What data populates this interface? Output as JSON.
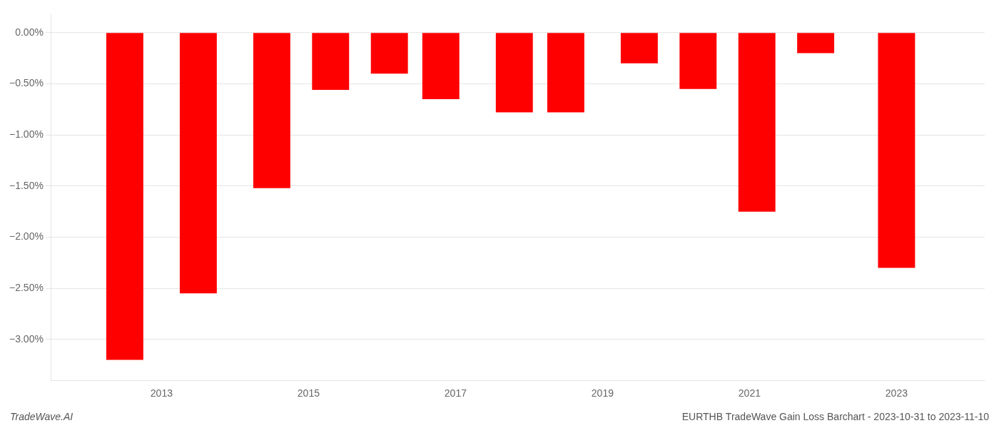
{
  "chart_data": {
    "type": "bar",
    "x": [
      2012.5,
      2013.5,
      2014.5,
      2015.3,
      2016.1,
      2016.8,
      2017.8,
      2018.5,
      2019.5,
      2020.3,
      2021.1,
      2021.9,
      2023.0
    ],
    "values": [
      -3.2,
      -2.55,
      -1.52,
      -0.56,
      -0.4,
      -0.65,
      -0.78,
      -0.78,
      -0.3,
      -0.55,
      -1.75,
      -0.2,
      -2.3
    ],
    "color": "#ff0000",
    "xlim": [
      2011.5,
      2024.2
    ],
    "xticks": [
      2013,
      2015,
      2017,
      2019,
      2021,
      2023
    ],
    "ylim": [
      -3.4,
      0.18
    ],
    "yticks": [
      {
        "value": 0.0,
        "label": "0.00%"
      },
      {
        "value": -0.5,
        "label": "−0.50%"
      },
      {
        "value": -1.0,
        "label": "−1.00%"
      },
      {
        "value": -1.5,
        "label": "−1.50%"
      },
      {
        "value": -2.0,
        "label": "−2.00%"
      },
      {
        "value": -2.5,
        "label": "−2.50%"
      },
      {
        "value": -3.0,
        "label": "−3.00%"
      }
    ],
    "grid": "y",
    "annotations": [
      "TradeWave.AI",
      "EURTHB TradeWave Gain Loss Barchart - 2023-10-31 to 2023-11-10"
    ]
  }
}
